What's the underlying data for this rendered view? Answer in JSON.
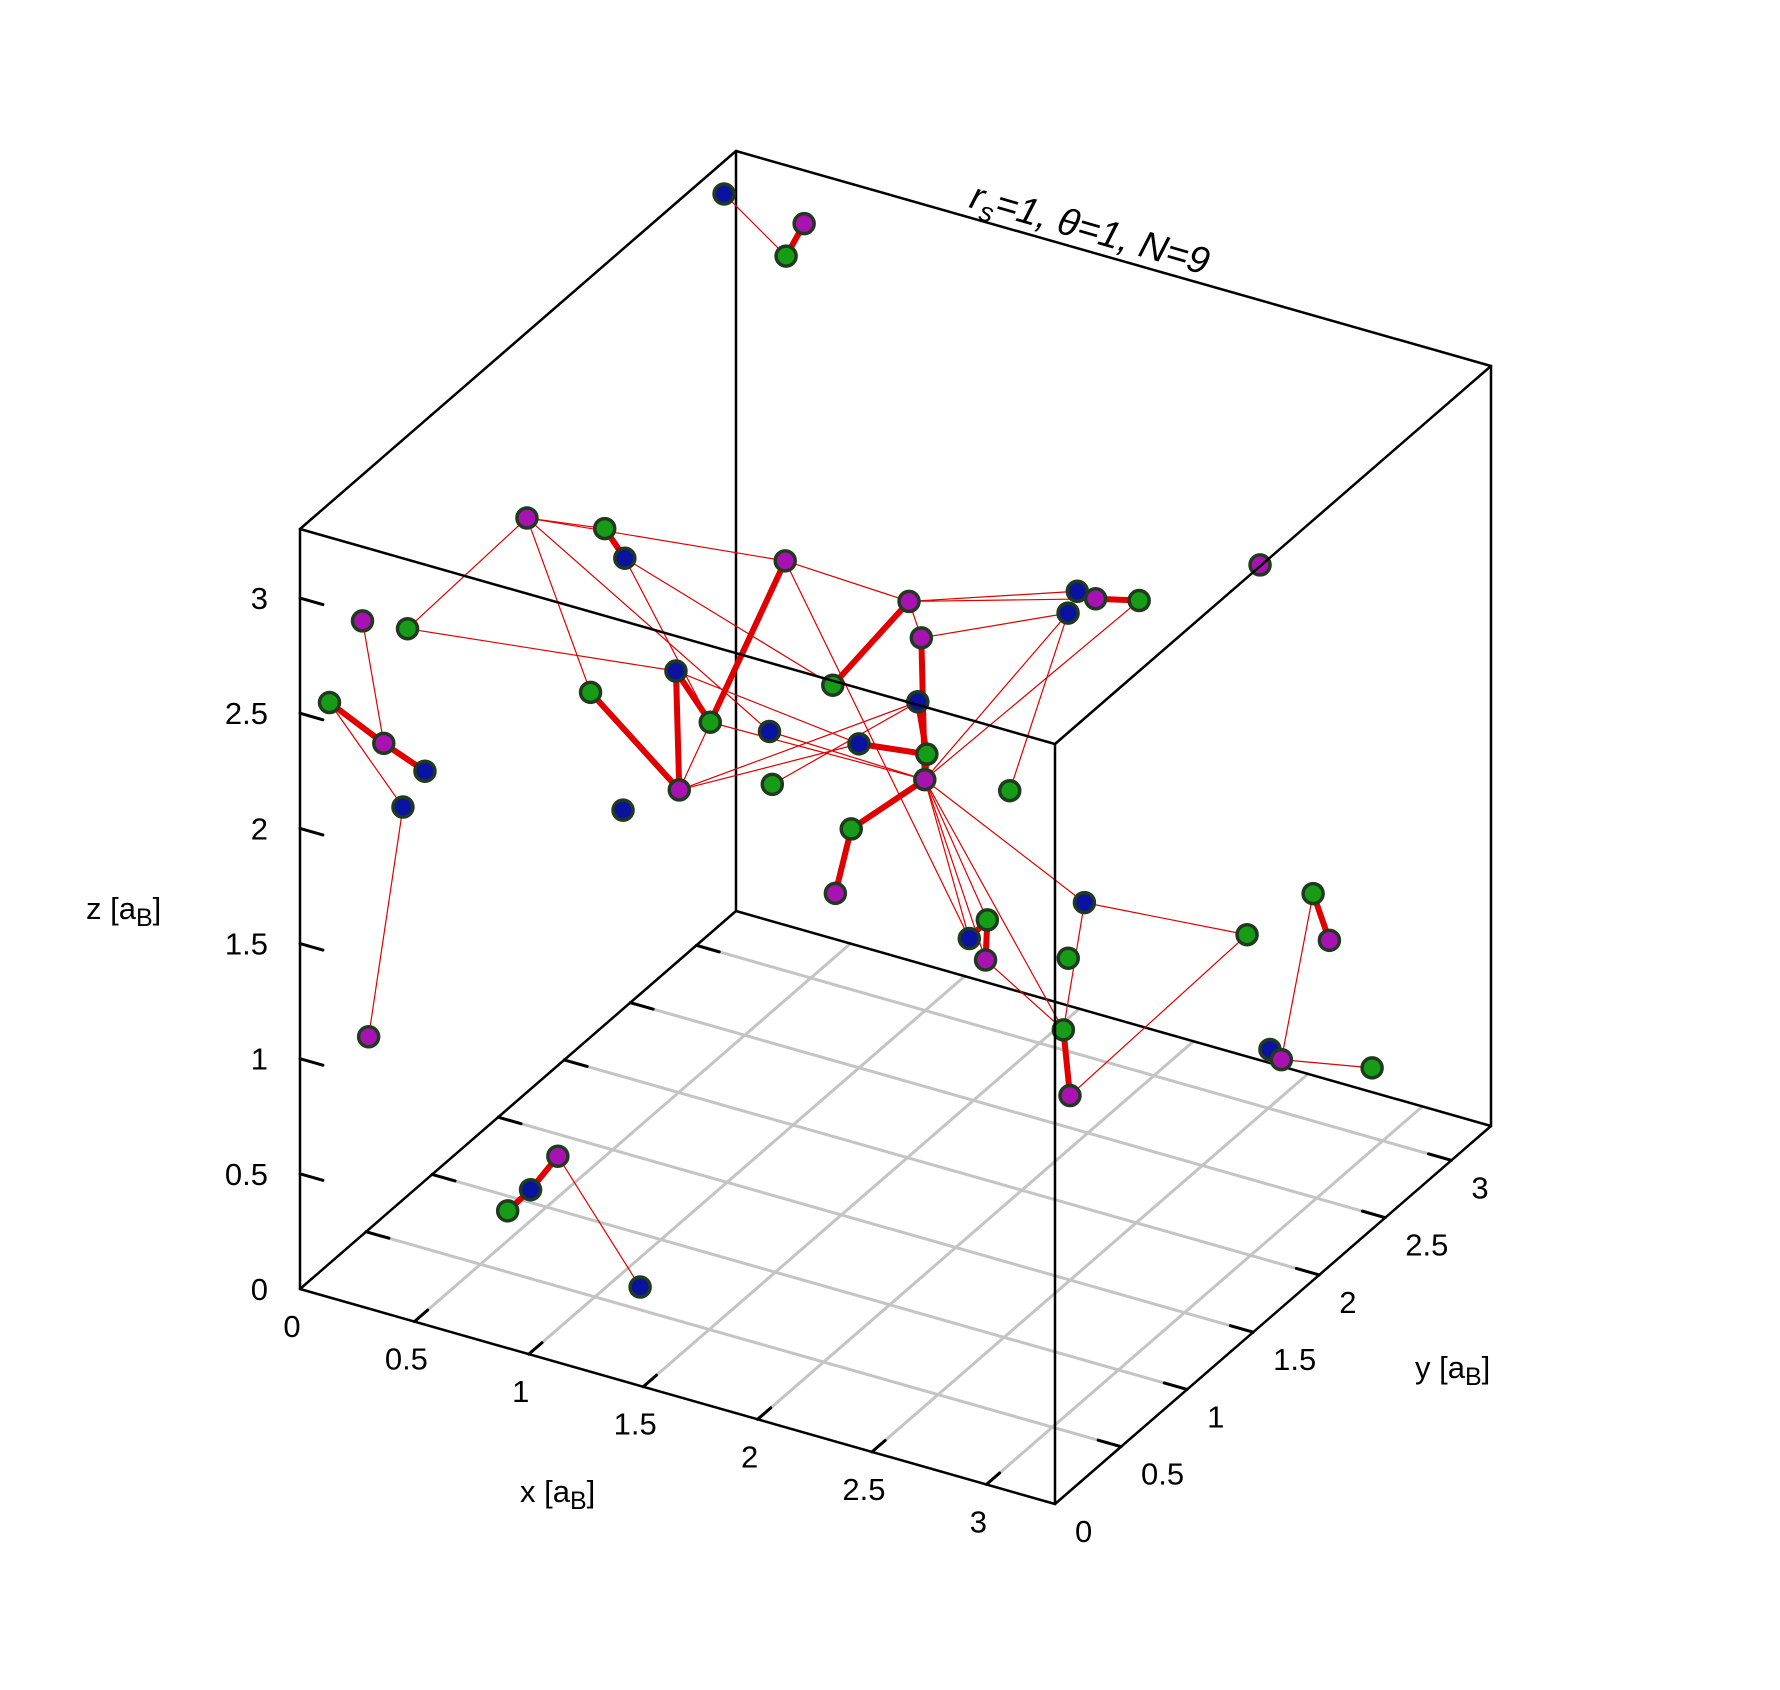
{
  "chart_data": {
    "type": "scatter3d",
    "title": {
      "r_symbol": "r",
      "r_sub": "s",
      "r_value": "=1, ",
      "theta_part": "θ=1, ",
      "n_part": "N=9"
    },
    "xlabel": {
      "main": "x [a",
      "sub": "B",
      "close": "]"
    },
    "ylabel": {
      "main": "y [a",
      "sub": "B",
      "close": "]"
    },
    "zlabel": {
      "main": "z [a",
      "sub": "B",
      "close": "]"
    },
    "xlim": [
      0,
      3.3
    ],
    "ylim": [
      0,
      3.3
    ],
    "zlim": [
      0,
      3.3
    ],
    "xticks": [
      "0",
      "0.5",
      "1",
      "1.5",
      "2",
      "2.5",
      "3"
    ],
    "yticks": [
      "0",
      "0.5",
      "1",
      "1.5",
      "2",
      "2.5",
      "3"
    ],
    "zticks": [
      "0",
      "0.5",
      "1",
      "1.5",
      "2",
      "2.5",
      "3"
    ],
    "grid": "xy-plane",
    "colors": {
      "species_a": "#0a12a0",
      "species_b": "#169c16",
      "species_c": "#a812b0",
      "marker_edge": "#1f3a1f",
      "link": "#e00000",
      "box": "#000000",
      "grid": "#c4c4c4"
    },
    "points": [
      {
        "id": "p1",
        "s": "a",
        "x": 0.15,
        "y": 2.95,
        "z": 3.33
      },
      {
        "id": "p2",
        "s": "c",
        "x": 0.5,
        "y": 2.95,
        "z": 3.3
      },
      {
        "id": "p3",
        "s": "b",
        "x": 0.45,
        "y": 2.9,
        "z": 3.17
      },
      {
        "id": "p4",
        "s": "c",
        "x": 3.33,
        "y": 1.5,
        "z": 3.34
      },
      {
        "id": "p5",
        "s": "c",
        "x": 0.53,
        "y": 0.8,
        "z": 3.1
      },
      {
        "id": "p6",
        "s": "b",
        "x": 0.87,
        "y": 0.8,
        "z": 3.15
      },
      {
        "id": "p7",
        "s": "a",
        "x": 0.9,
        "y": 0.9,
        "z": 2.98
      },
      {
        "id": "p8",
        "s": "b",
        "x": 0.47,
        "y": 0.0,
        "z": 3.0
      },
      {
        "id": "p9",
        "s": "b",
        "x": 1.27,
        "y": 0.0,
        "z": 2.95
      },
      {
        "id": "p10",
        "s": "a",
        "x": 1.47,
        "y": 0.3,
        "z": 2.95
      },
      {
        "id": "p11",
        "s": "b",
        "x": 1.62,
        "y": 0.3,
        "z": 2.77
      },
      {
        "id": "p12",
        "s": "c",
        "x": 1.63,
        "y": 0.85,
        "z": 3.2
      },
      {
        "id": "p13",
        "s": "b",
        "x": 2.04,
        "y": 0.5,
        "z": 2.95
      },
      {
        "id": "p14",
        "s": "a",
        "x": 1.85,
        "y": 0.35,
        "z": 2.77
      },
      {
        "id": "p15",
        "s": "b",
        "x": 1.92,
        "y": 0.25,
        "z": 2.61
      },
      {
        "id": "p16",
        "s": "c",
        "x": 1.6,
        "y": 0.1,
        "z": 2.57
      },
      {
        "id": "p17",
        "s": "c",
        "x": 2.2,
        "y": 0.8,
        "z": 3.21
      },
      {
        "id": "p18",
        "s": "c",
        "x": 2.3,
        "y": 0.72,
        "z": 3.12
      },
      {
        "id": "p19",
        "s": "a",
        "x": 2.4,
        "y": 0.52,
        "z": 2.97
      },
      {
        "id": "p20",
        "s": "a",
        "x": 2.27,
        "y": 0.3,
        "z": 2.86
      },
      {
        "id": "p21",
        "s": "b",
        "x": 2.48,
        "y": 0.45,
        "z": 2.8
      },
      {
        "id": "p22",
        "s": "c",
        "x": 2.5,
        "y": 0.4,
        "z": 2.72
      },
      {
        "id": "p23",
        "s": "b",
        "x": 2.34,
        "y": 0.12,
        "z": 2.6
      },
      {
        "id": "p24",
        "s": "c",
        "x": 2.34,
        "y": 0.0,
        "z": 2.38
      },
      {
        "id": "p25",
        "s": "a",
        "x": 2.82,
        "y": 1.0,
        "z": 3.33
      },
      {
        "id": "p26",
        "s": "c",
        "x": 2.9,
        "y": 1.0,
        "z": 3.32
      },
      {
        "id": "p27",
        "s": "b",
        "x": 3.05,
        "y": 1.07,
        "z": 3.32
      },
      {
        "id": "p28",
        "s": "a",
        "x": 2.82,
        "y": 0.93,
        "z": 3.27
      },
      {
        "id": "p29",
        "s": "b",
        "x": 2.9,
        "y": 0.35,
        "z": 2.81
      },
      {
        "id": "p30",
        "s": "b",
        "x": 3.3,
        "y": 0.1,
        "z": 2.32
      },
      {
        "id": "p31",
        "s": "b",
        "x": 3.25,
        "y": 0.15,
        "z": 1.97
      },
      {
        "id": "p32",
        "s": "c",
        "x": 3.25,
        "y": 0.2,
        "z": 1.66
      },
      {
        "id": "p33",
        "s": "a",
        "x": 2.88,
        "y": 0.95,
        "z": 2.02
      },
      {
        "id": "p34",
        "s": "a",
        "x": 2.55,
        "y": 0.65,
        "z": 1.92
      },
      {
        "id": "p35",
        "s": "b",
        "x": 2.6,
        "y": 0.7,
        "z": 1.99
      },
      {
        "id": "p36",
        "s": "c",
        "x": 2.65,
        "y": 0.6,
        "z": 1.88
      },
      {
        "id": "p37",
        "s": "b",
        "x": 3.1,
        "y": 1.8,
        "z": 1.52
      },
      {
        "id": "p38",
        "s": "b",
        "x": 3.1,
        "y": 2.3,
        "z": 1.45
      },
      {
        "id": "p39",
        "s": "c",
        "x": 3.2,
        "y": 2.25,
        "z": 1.3
      },
      {
        "id": "p40",
        "s": "a",
        "x": 3.2,
        "y": 1.8,
        "z": 1.05
      },
      {
        "id": "p41",
        "s": "c",
        "x": 3.25,
        "y": 1.8,
        "z": 1.02
      },
      {
        "id": "p42",
        "s": "b",
        "x": 3.3,
        "y": 2.4,
        "z": 0.7
      },
      {
        "id": "p43",
        "s": "c",
        "x": 0.1,
        "y": 0.3,
        "z": 2.78
      },
      {
        "id": "p44",
        "s": "b",
        "x": 0.1,
        "y": 0.05,
        "z": 2.55
      },
      {
        "id": "p45",
        "s": "c",
        "x": 0.32,
        "y": 0.08,
        "z": 2.42
      },
      {
        "id": "p46",
        "s": "a",
        "x": 0.5,
        "y": 0.08,
        "z": 2.35
      },
      {
        "id": "p47",
        "s": "a",
        "x": 0.45,
        "y": 0.0,
        "z": 2.22
      },
      {
        "id": "p48",
        "s": "c",
        "x": 0.3,
        "y": 0.0,
        "z": 1.18
      },
      {
        "id": "p49",
        "s": "a",
        "x": 0.95,
        "y": 0.8,
        "z": 1.95
      },
      {
        "id": "p50",
        "s": "b",
        "x": 0.85,
        "y": 0.1,
        "z": 0.53
      },
      {
        "id": "p51",
        "s": "a",
        "x": 0.95,
        "y": 0.1,
        "z": 0.65
      },
      {
        "id": "p52",
        "s": "c",
        "x": 1.0,
        "y": 0.22,
        "z": 0.75
      },
      {
        "id": "p53",
        "s": "a",
        "x": 1.4,
        "y": 0.15,
        "z": 0.33
      }
    ],
    "links": [
      {
        "from": "p2",
        "to": "p3",
        "w": "thick"
      },
      {
        "from": "p1",
        "to": "p3",
        "w": "thin"
      },
      {
        "from": "p5",
        "to": "p6",
        "w": "thin"
      },
      {
        "from": "p6",
        "to": "p7",
        "w": "thick"
      },
      {
        "from": "p5",
        "to": "p8",
        "w": "thin"
      },
      {
        "from": "p5",
        "to": "p9",
        "w": "thin"
      },
      {
        "from": "p5",
        "to": "p14",
        "w": "thin"
      },
      {
        "from": "p5",
        "to": "p12",
        "w": "thin"
      },
      {
        "from": "p7",
        "to": "p11",
        "w": "thin"
      },
      {
        "from": "p7",
        "to": "p13",
        "w": "thin"
      },
      {
        "from": "p8",
        "to": "p10",
        "w": "thin"
      },
      {
        "from": "p10",
        "to": "p11",
        "w": "thick"
      },
      {
        "from": "p10",
        "to": "p16",
        "w": "thick"
      },
      {
        "from": "p9",
        "to": "p16",
        "w": "thick"
      },
      {
        "from": "p11",
        "to": "p12",
        "w": "thick"
      },
      {
        "from": "p12",
        "to": "p17",
        "w": "thin"
      },
      {
        "from": "p13",
        "to": "p17",
        "w": "thick"
      },
      {
        "from": "p16",
        "to": "p12",
        "w": "thin"
      },
      {
        "from": "p16",
        "to": "p20",
        "w": "thin"
      },
      {
        "from": "p16",
        "to": "p19",
        "w": "thin"
      },
      {
        "from": "p10",
        "to": "p20",
        "w": "thin"
      },
      {
        "from": "p11",
        "to": "p22",
        "w": "thin"
      },
      {
        "from": "p14",
        "to": "p22",
        "w": "thin"
      },
      {
        "from": "p15",
        "to": "p19",
        "w": "thin"
      },
      {
        "from": "p17",
        "to": "p18",
        "w": "thin"
      },
      {
        "from": "p18",
        "to": "p22",
        "w": "thick"
      },
      {
        "from": "p19",
        "to": "p21",
        "w": "thick"
      },
      {
        "from": "p20",
        "to": "p21",
        "w": "thick"
      },
      {
        "from": "p21",
        "to": "p22",
        "w": "thick"
      },
      {
        "from": "p22",
        "to": "p23",
        "w": "thick"
      },
      {
        "from": "p23",
        "to": "p24",
        "w": "thick"
      },
      {
        "from": "p18",
        "to": "p28",
        "w": "thin"
      },
      {
        "from": "p17",
        "to": "p25",
        "w": "thin"
      },
      {
        "from": "p17",
        "to": "p26",
        "w": "thin"
      },
      {
        "from": "p25",
        "to": "p26",
        "w": "thick"
      },
      {
        "from": "p26",
        "to": "p27",
        "w": "thick"
      },
      {
        "from": "p28",
        "to": "p29",
        "w": "thin"
      },
      {
        "from": "p28",
        "to": "p22",
        "w": "thin"
      },
      {
        "from": "p27",
        "to": "p22",
        "w": "thin"
      },
      {
        "from": "p22",
        "to": "p34",
        "w": "thin"
      },
      {
        "from": "p22",
        "to": "p35",
        "w": "thin"
      },
      {
        "from": "p22",
        "to": "p36",
        "w": "thin"
      },
      {
        "from": "p22",
        "to": "p33",
        "w": "thin"
      },
      {
        "from": "p22",
        "to": "p31",
        "w": "thin"
      },
      {
        "from": "p12",
        "to": "p34",
        "w": "thin"
      },
      {
        "from": "p34",
        "to": "p35",
        "w": "thick"
      },
      {
        "from": "p35",
        "to": "p36",
        "w": "thick"
      },
      {
        "from": "p36",
        "to": "p31",
        "w": "thin"
      },
      {
        "from": "p33",
        "to": "p31",
        "w": "thin"
      },
      {
        "from": "p31",
        "to": "p32",
        "w": "thick"
      },
      {
        "from": "p32",
        "to": "p37",
        "w": "thin"
      },
      {
        "from": "p33",
        "to": "p37",
        "w": "thin"
      },
      {
        "from": "p38",
        "to": "p39",
        "w": "thick"
      },
      {
        "from": "p38",
        "to": "p41",
        "w": "thin"
      },
      {
        "from": "p40",
        "to": "p41",
        "w": "thick"
      },
      {
        "from": "p41",
        "to": "p42",
        "w": "thin"
      },
      {
        "from": "p44",
        "to": "p45",
        "w": "thick"
      },
      {
        "from": "p45",
        "to": "p46",
        "w": "thick"
      },
      {
        "from": "p44",
        "to": "p47",
        "w": "thin"
      },
      {
        "from": "p43",
        "to": "p45",
        "w": "thin"
      },
      {
        "from": "p47",
        "to": "p48",
        "w": "thin"
      },
      {
        "from": "p50",
        "to": "p51",
        "w": "thick"
      },
      {
        "from": "p51",
        "to": "p52",
        "w": "thick"
      },
      {
        "from": "p52",
        "to": "p53",
        "w": "thin"
      }
    ]
  }
}
